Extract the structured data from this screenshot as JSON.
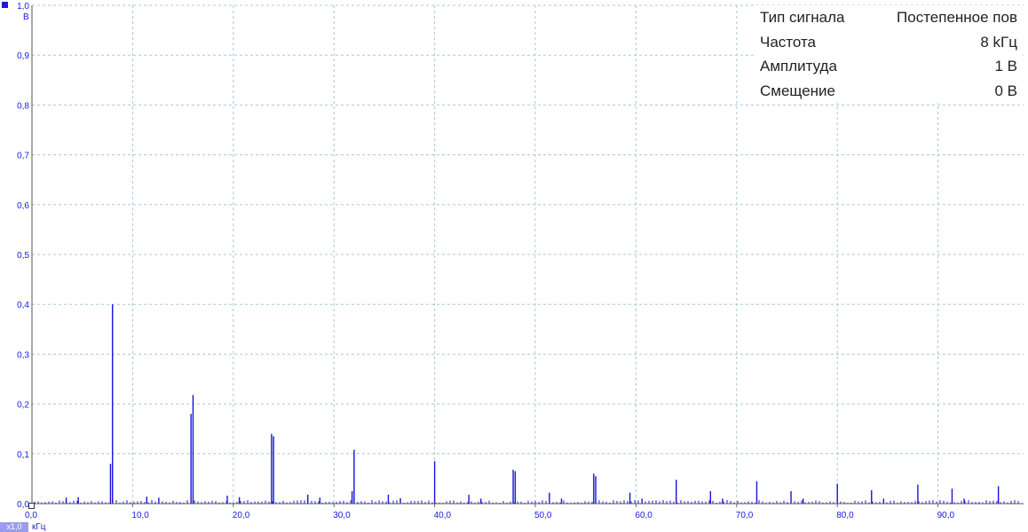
{
  "chart_data": {
    "type": "bar",
    "title": "",
    "xlabel": "",
    "ylabel": "",
    "x_unit": "кГц",
    "y_unit": "В",
    "xlim": [
      0,
      98.5
    ],
    "ylim": [
      0,
      1.0
    ],
    "grid": true,
    "x_ticks": [
      "0,0",
      "10,0",
      "20,0",
      "30,0",
      "40,0",
      "50,0",
      "60,0",
      "70,0",
      "80,0",
      "90,0"
    ],
    "y_ticks": [
      "0,0",
      "0,1",
      "0,2",
      "0,3",
      "0,4",
      "0,5",
      "0,6",
      "0,7",
      "0,8",
      "0,9",
      "1,0"
    ],
    "series": [
      {
        "color": "#1414d8",
        "x": [
          7.8,
          8.0,
          15.8,
          16.0,
          23.8,
          24.0,
          31.8,
          32.0,
          40.0,
          47.8,
          48.0,
          55.8,
          56.0,
          64.0,
          72.0,
          80.0,
          88.0,
          96.0,
          3.4,
          4.6,
          11.4,
          12.6,
          19.4,
          20.6,
          27.4,
          28.6,
          35.4,
          36.6,
          43.4,
          44.6,
          51.4,
          52.6,
          59.4,
          60.6,
          67.4,
          68.6,
          75.4,
          76.6,
          83.4,
          84.6,
          91.4,
          92.6
        ],
        "values": [
          0.08,
          0.4,
          0.18,
          0.218,
          0.14,
          0.135,
          0.025,
          0.108,
          0.085,
          0.068,
          0.065,
          0.06,
          0.055,
          0.048,
          0.045,
          0.04,
          0.038,
          0.035,
          0.012,
          0.013,
          0.014,
          0.012,
          0.016,
          0.013,
          0.018,
          0.012,
          0.018,
          0.011,
          0.018,
          0.01,
          0.022,
          0.01,
          0.022,
          0.01,
          0.025,
          0.01,
          0.025,
          0.01,
          0.027,
          0.01,
          0.03,
          0.01
        ]
      }
    ]
  },
  "info": {
    "rows": [
      {
        "label": "Тип сигнала",
        "value": "Постепенное пов"
      },
      {
        "label": "Частота",
        "value": "8 kГц"
      },
      {
        "label": "Амплитуда",
        "value": "1 В"
      },
      {
        "label": "Смещение",
        "value": "0 В"
      }
    ]
  },
  "footer": {
    "range_badge": "x1,0"
  },
  "colors": {
    "accent": "#1414d8",
    "grid": "#a9c8d8",
    "badge": "#9b9bf0"
  }
}
